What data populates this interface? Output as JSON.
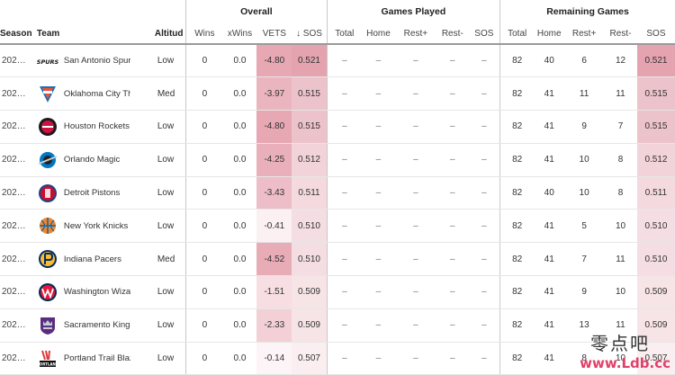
{
  "groups": {
    "overall": "Overall",
    "games_played": "Games Played",
    "remaining": "Remaining Games"
  },
  "columns": {
    "season": "Season",
    "team": "Team",
    "altitude": "Altitud",
    "wins": "Wins",
    "xwins": "xWins",
    "vets": "VETS",
    "sos_sorted": "↓ SOS",
    "gp_total": "Total",
    "gp_home": "Home",
    "gp_rest_plus": "Rest+",
    "gp_rest_minus": "Rest-",
    "gp_sos": "SOS",
    "rm_total": "Total",
    "rm_home": "Home",
    "rm_rest_plus": "Rest+",
    "rm_rest_minus": "Rest-",
    "rm_sos": "SOS"
  },
  "colors": {
    "vets_strong": "#e7a7b3",
    "sos_strong": "#e4a3af",
    "accent": "#e0406a"
  },
  "rows": [
    {
      "season": "202…",
      "team": "San Antonio Spurs",
      "logo": "spurs-logo",
      "altitude": "Low",
      "wins": "0",
      "xwins": "0.0",
      "vets": "-4.80",
      "sos": "0.521",
      "gp_total": "–",
      "gp_home": "–",
      "gp_rest_plus": "–",
      "gp_rest_minus": "–",
      "gp_sos": "–",
      "rm_total": "82",
      "rm_home": "40",
      "rm_rest_plus": "6",
      "rm_rest_minus": "12",
      "rm_sos": "0.521"
    },
    {
      "season": "202…",
      "team": "Oklahoma City Thunder",
      "logo": "thunder-logo",
      "altitude": "Med",
      "wins": "0",
      "xwins": "0.0",
      "vets": "-3.97",
      "sos": "0.515",
      "gp_total": "–",
      "gp_home": "–",
      "gp_rest_plus": "–",
      "gp_rest_minus": "–",
      "gp_sos": "–",
      "rm_total": "82",
      "rm_home": "41",
      "rm_rest_plus": "11",
      "rm_rest_minus": "11",
      "rm_sos": "0.515"
    },
    {
      "season": "202…",
      "team": "Houston Rockets",
      "logo": "rockets-logo",
      "altitude": "Low",
      "wins": "0",
      "xwins": "0.0",
      "vets": "-4.80",
      "sos": "0.515",
      "gp_total": "–",
      "gp_home": "–",
      "gp_rest_plus": "–",
      "gp_rest_minus": "–",
      "gp_sos": "–",
      "rm_total": "82",
      "rm_home": "41",
      "rm_rest_plus": "9",
      "rm_rest_minus": "7",
      "rm_sos": "0.515"
    },
    {
      "season": "202…",
      "team": "Orlando Magic",
      "logo": "magic-logo",
      "altitude": "Low",
      "wins": "0",
      "xwins": "0.0",
      "vets": "-4.25",
      "sos": "0.512",
      "gp_total": "–",
      "gp_home": "–",
      "gp_rest_plus": "–",
      "gp_rest_minus": "–",
      "gp_sos": "–",
      "rm_total": "82",
      "rm_home": "41",
      "rm_rest_plus": "10",
      "rm_rest_minus": "8",
      "rm_sos": "0.512"
    },
    {
      "season": "202…",
      "team": "Detroit Pistons",
      "logo": "pistons-logo",
      "altitude": "Low",
      "wins": "0",
      "xwins": "0.0",
      "vets": "-3.43",
      "sos": "0.511",
      "gp_total": "–",
      "gp_home": "–",
      "gp_rest_plus": "–",
      "gp_rest_minus": "–",
      "gp_sos": "–",
      "rm_total": "82",
      "rm_home": "40",
      "rm_rest_plus": "10",
      "rm_rest_minus": "8",
      "rm_sos": "0.511"
    },
    {
      "season": "202…",
      "team": "New York Knicks",
      "logo": "knicks-logo",
      "altitude": "Low",
      "wins": "0",
      "xwins": "0.0",
      "vets": "-0.41",
      "sos": "0.510",
      "gp_total": "–",
      "gp_home": "–",
      "gp_rest_plus": "–",
      "gp_rest_minus": "–",
      "gp_sos": "–",
      "rm_total": "82",
      "rm_home": "41",
      "rm_rest_plus": "5",
      "rm_rest_minus": "10",
      "rm_sos": "0.510"
    },
    {
      "season": "202…",
      "team": "Indiana Pacers",
      "logo": "pacers-logo",
      "altitude": "Med",
      "wins": "0",
      "xwins": "0.0",
      "vets": "-4.52",
      "sos": "0.510",
      "gp_total": "–",
      "gp_home": "–",
      "gp_rest_plus": "–",
      "gp_rest_minus": "–",
      "gp_sos": "–",
      "rm_total": "82",
      "rm_home": "41",
      "rm_rest_plus": "7",
      "rm_rest_minus": "11",
      "rm_sos": "0.510"
    },
    {
      "season": "202…",
      "team": "Washington Wizards",
      "logo": "wizards-logo",
      "altitude": "Low",
      "wins": "0",
      "xwins": "0.0",
      "vets": "-1.51",
      "sos": "0.509",
      "gp_total": "–",
      "gp_home": "–",
      "gp_rest_plus": "–",
      "gp_rest_minus": "–",
      "gp_sos": "–",
      "rm_total": "82",
      "rm_home": "41",
      "rm_rest_plus": "9",
      "rm_rest_minus": "10",
      "rm_sos": "0.509"
    },
    {
      "season": "202…",
      "team": "Sacramento Kings",
      "logo": "kings-logo",
      "altitude": "Low",
      "wins": "0",
      "xwins": "0.0",
      "vets": "-2.33",
      "sos": "0.509",
      "gp_total": "–",
      "gp_home": "–",
      "gp_rest_plus": "–",
      "gp_rest_minus": "–",
      "gp_sos": "–",
      "rm_total": "82",
      "rm_home": "41",
      "rm_rest_plus": "13",
      "rm_rest_minus": "11",
      "rm_sos": "0.509"
    },
    {
      "season": "202…",
      "team": "Portland Trail Blazers",
      "logo": "blazers-logo",
      "altitude": "Low",
      "wins": "0",
      "xwins": "0.0",
      "vets": "-0.14",
      "sos": "0.507",
      "gp_total": "–",
      "gp_home": "–",
      "gp_rest_plus": "–",
      "gp_rest_minus": "–",
      "gp_sos": "–",
      "rm_total": "82",
      "rm_home": "41",
      "rm_rest_plus": "8",
      "rm_rest_minus": "10",
      "rm_sos": "0.507"
    }
  ],
  "watermark": {
    "cn": "零点吧",
    "url": "www.Ldb.cc"
  }
}
